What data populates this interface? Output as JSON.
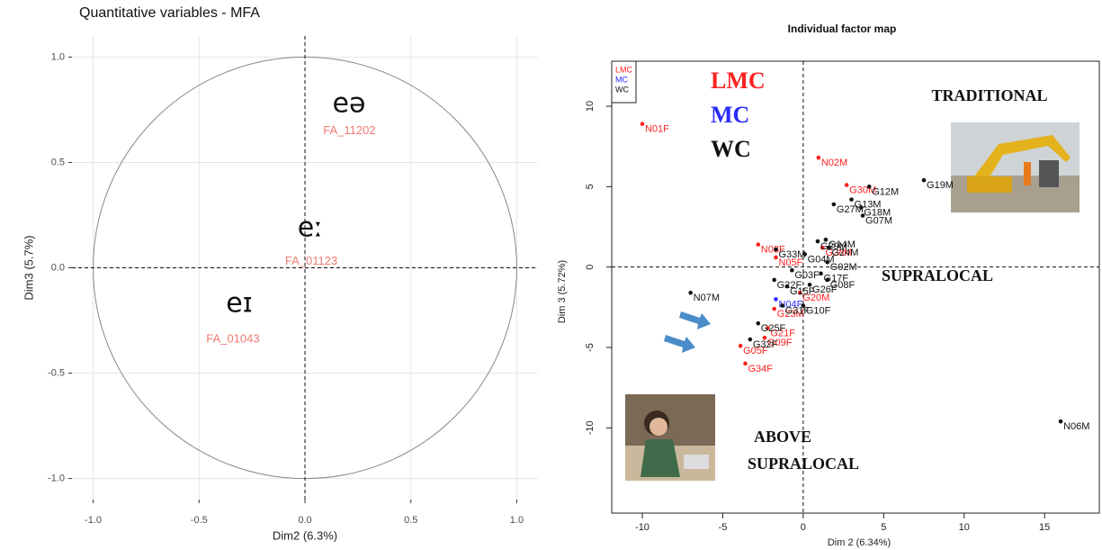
{
  "chart_data": [
    {
      "type": "scatter",
      "title": "Quantitative variables - MFA",
      "x_label": "Dim2 (6.3%)",
      "y_label": "Dim3 (5.7%)",
      "xlim": [
        -1.1,
        1.1
      ],
      "ylim": [
        -1.1,
        1.1
      ],
      "xticks": [
        {
          "value": -1,
          "label": "-1.0"
        },
        {
          "value": -0.5,
          "label": "-0.5"
        },
        {
          "value": 0,
          "label": "0.0"
        },
        {
          "value": 0.5,
          "label": "0.5"
        },
        {
          "value": 1,
          "label": "1.0"
        }
      ],
      "yticks": [
        {
          "value": -1,
          "label": "-1.0"
        },
        {
          "value": -0.5,
          "label": "-0.5"
        },
        {
          "value": 0,
          "label": "0.0"
        },
        {
          "value": 0.5,
          "label": "0.5"
        },
        {
          "value": 1,
          "label": "1.0"
        }
      ],
      "grid": true,
      "zero_lines": true,
      "unit_circle": true,
      "color": "#f07b72",
      "labels": [
        "FA_11202",
        "FA_01123",
        "FA_01043"
      ],
      "x": [
        0.21,
        0.03,
        -0.34
      ],
      "y": [
        0.65,
        0.03,
        -0.34
      ],
      "annotations": [
        "eə",
        "eː",
        "eɪ"
      ]
    },
    {
      "type": "scatter",
      "title": "Individual factor map",
      "x_label": "Dim 2 (6.34%)",
      "y_label": "Dim 3 (5.72%)",
      "xlim": [
        -11.9,
        18.4
      ],
      "ylim": [
        -15.3,
        12.8
      ],
      "xticks": [
        -10,
        -5,
        0,
        5,
        10,
        15
      ],
      "yticks": [
        -10,
        -5,
        0,
        5,
        10
      ],
      "grid": false,
      "zero_lines": true,
      "legend": "top-left",
      "series": [
        {
          "name": "LMC",
          "color": "#ff2020",
          "labels": [
            "N01F",
            "N02M",
            "G30M",
            "G28M",
            "N03F",
            "N05F",
            "G20M",
            "G23M",
            "G21F",
            "G05F",
            "G09F",
            "G34F"
          ],
          "x": [
            -10.0,
            0.95,
            2.7,
            1.2,
            -2.8,
            -1.7,
            -0.2,
            -1.8,
            -2.2,
            -3.9,
            -2.4,
            -3.6
          ],
          "y": [
            8.9,
            6.8,
            5.1,
            1.2,
            1.4,
            0.6,
            -1.6,
            -2.6,
            -3.8,
            -4.9,
            -4.4,
            -6.0
          ]
        },
        {
          "name": "MC",
          "color": "#2a2aff",
          "labels": [
            "N04F"
          ],
          "x": [
            -1.7
          ],
          "y": [
            -2.0
          ]
        },
        {
          "name": "WC",
          "color": "#111111",
          "labels": [
            "G19M",
            "G13M",
            "G12M",
            "G18M",
            "G27M",
            "G07M",
            "G29M",
            "G14M",
            "G24M",
            "G33M",
            "G04M",
            "G02M",
            "G03F",
            "G17F",
            "G08F",
            "G22F",
            "G15F",
            "G26F",
            "G31F",
            "G10F",
            "N07M",
            "G25F",
            "G32F",
            "N06M"
          ],
          "x": [
            7.5,
            3.0,
            4.1,
            3.6,
            1.9,
            3.7,
            0.9,
            1.4,
            1.6,
            -1.7,
            0.1,
            1.5,
            -0.7,
            1.1,
            1.5,
            -1.8,
            -1.0,
            0.4,
            -1.3,
            0.0,
            -7.0,
            -2.8,
            -3.3,
            16.0
          ],
          "y": [
            5.4,
            4.2,
            5.0,
            3.7,
            3.9,
            3.2,
            1.6,
            1.7,
            1.2,
            1.1,
            0.8,
            0.3,
            -0.2,
            -0.4,
            -0.8,
            -0.8,
            -1.2,
            -1.1,
            -2.4,
            -2.4,
            -1.6,
            -3.5,
            -4.5,
            -9.6
          ]
        }
      ],
      "annotations": [
        "TRADITIONAL",
        "SUPRALOCAL",
        "ABOVE",
        "SUPRALOCAL"
      ]
    }
  ]
}
